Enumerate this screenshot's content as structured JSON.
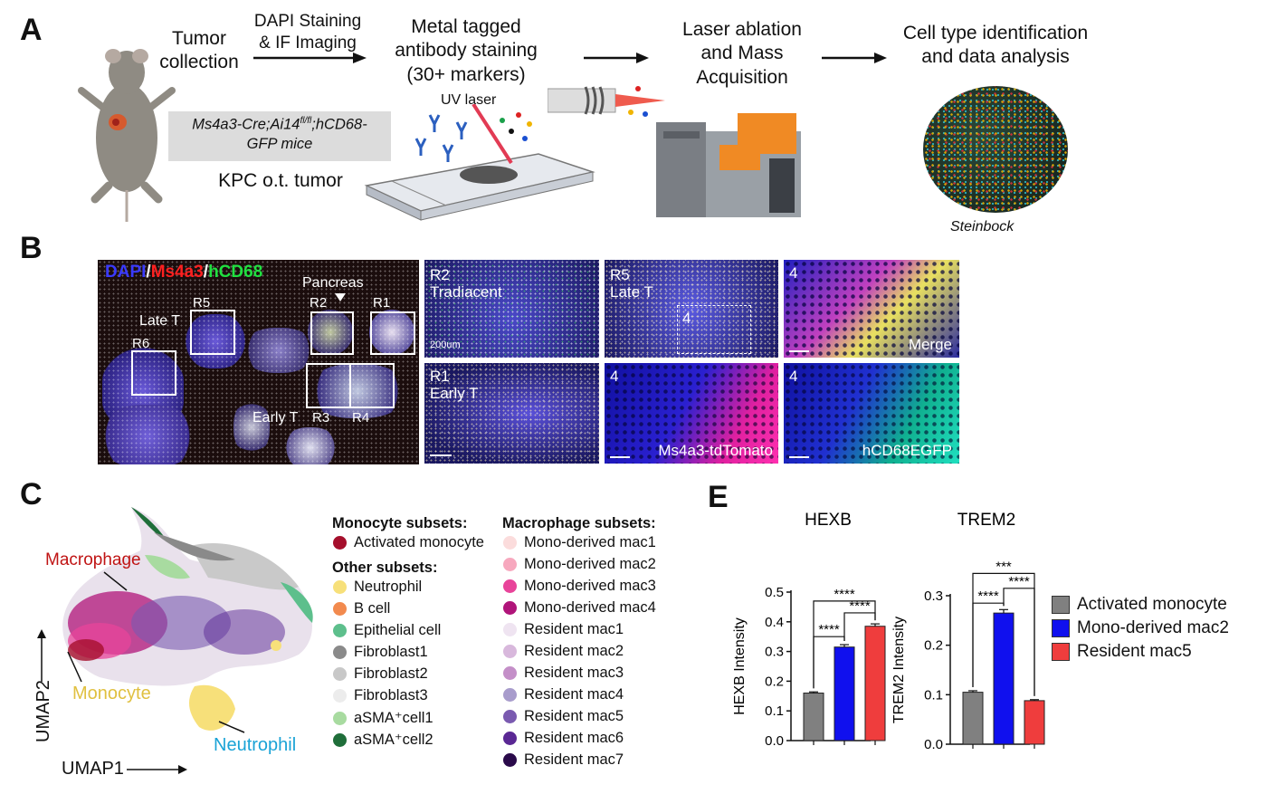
{
  "panels": {
    "a": "A",
    "b": "B",
    "c": "C",
    "e": "E"
  },
  "panelA": {
    "step1": "Tumor\ncollection",
    "arrow1_label": "DAPI Staining\n& IF Imaging",
    "step2": "Metal tagged\nantibody staining\n(30+ markers)",
    "uv_laser": "UV laser",
    "step3": "Laser ablation\nand Mass\nAcquisition",
    "step4": "Cell type identification\nand data analysis",
    "mouse_model": "Ms4a3-Cre;Ai14",
    "mouse_model_sup": "fl/fl",
    "mouse_model_rest": ";hCD68-",
    "mouse_model_line2": "GFP mice",
    "tumor": "KPC o.t. tumor",
    "software": "Steinbock"
  },
  "panelB": {
    "title_dapi": "DAPI",
    "title_sep1": "/",
    "title_ms4a3": "Ms4a3",
    "title_sep2": "/",
    "title_hcd68": "hCD68",
    "pancreas": "Pancreas",
    "late_t": "Late T",
    "early_t": "Early T",
    "regions": [
      "R5",
      "R2",
      "R1",
      "R6",
      "R3",
      "R4"
    ],
    "tile_r2": "R2\nTradiacent",
    "scale_label": "200um",
    "tile_r5": "R5\nLate T",
    "tile_r5_inset": "4",
    "tile_merge_num": "4",
    "tile_merge": "Merge",
    "tile_r1": "R1\nEarly T",
    "tile_tomato_num": "4",
    "tile_tomato": "Ms4a3-tdTomato",
    "tile_egfp_num": "4",
    "tile_egfp": "hCD68EGFP"
  },
  "panelC": {
    "label_macrophage": "Macrophage",
    "label_monocyte": "Monocyte",
    "label_neutrophil": "Neutrophil",
    "axis_x": "UMAP1",
    "axis_y": "UMAP2",
    "monocyte_title": "Monocyte subsets:",
    "monocyte_items": [
      {
        "label": "Activated monocyte",
        "color": "#a50f2c"
      }
    ],
    "other_title": "Other subsets:",
    "other_items": [
      {
        "label": "Neutrophil",
        "color": "#f7e07a"
      },
      {
        "label": "B cell",
        "color": "#f28a4e"
      },
      {
        "label": "Epithelial cell",
        "color": "#5dbf8c"
      },
      {
        "label": "Fibroblast1",
        "color": "#8a8a8a"
      },
      {
        "label": "Fibroblast2",
        "color": "#c8c8c8"
      },
      {
        "label": "Fibroblast3",
        "color": "#ececec"
      },
      {
        "label": "aSMA⁺cell1",
        "color": "#a8dba0"
      },
      {
        "label": "aSMA⁺cell2",
        "color": "#1f6e3a"
      }
    ],
    "mac_title": "Macrophage subsets:",
    "mac_items": [
      {
        "label": "Mono-derived mac1",
        "color": "#fbdcdc"
      },
      {
        "label": "Mono-derived mac2",
        "color": "#f7a8be"
      },
      {
        "label": "Mono-derived mac3",
        "color": "#e8449a"
      },
      {
        "label": "Mono-derived mac4",
        "color": "#b0147a"
      },
      {
        "label": "Resident mac1",
        "color": "#efe4f1"
      },
      {
        "label": "Resident mac2",
        "color": "#d8b8dc"
      },
      {
        "label": "Resident mac3",
        "color": "#c48fc8"
      },
      {
        "label": "Resident mac4",
        "color": "#a89ccc"
      },
      {
        "label": "Resident mac5",
        "color": "#7a5ab0"
      },
      {
        "label": "Resident mac6",
        "color": "#5a2894"
      },
      {
        "label": "Resident mac7",
        "color": "#2a0a4a"
      }
    ]
  },
  "chart_data": [
    {
      "type": "bar",
      "title": "HEXB",
      "ylabel": "HEXB Intensity",
      "categories": [
        "Activated monocyte",
        "Mono-derived mac2",
        "Resident mac5"
      ],
      "values": [
        0.16,
        0.315,
        0.385
      ],
      "errors": [
        0.004,
        0.008,
        0.008
      ],
      "colors": [
        "#808080",
        "#1010ee",
        "#ef3d3d"
      ],
      "ylim": [
        0,
        0.5
      ],
      "yticks": [
        "0.0",
        "0.1",
        "0.2",
        "0.3",
        "0.4",
        "0.5"
      ],
      "significance": [
        "****",
        "****",
        "****"
      ]
    },
    {
      "type": "bar",
      "title": "TREM2",
      "ylabel": "TREM2 Intensity",
      "categories": [
        "Activated monocyte",
        "Mono-derived mac2",
        "Resident mac5"
      ],
      "values": [
        0.105,
        0.265,
        0.088
      ],
      "errors": [
        0.003,
        0.007,
        0.002
      ],
      "colors": [
        "#808080",
        "#1010ee",
        "#ef3d3d"
      ],
      "ylim": [
        0,
        0.3
      ],
      "yticks": [
        "0.0",
        "0.1",
        "0.2",
        "0.3"
      ],
      "significance": [
        "***",
        "****",
        "****"
      ]
    }
  ],
  "legendE": [
    {
      "label": "Activated monocyte",
      "color": "#808080"
    },
    {
      "label": "Mono-derived mac2",
      "color": "#1010ee"
    },
    {
      "label": "Resident mac5",
      "color": "#ef3d3d"
    }
  ]
}
